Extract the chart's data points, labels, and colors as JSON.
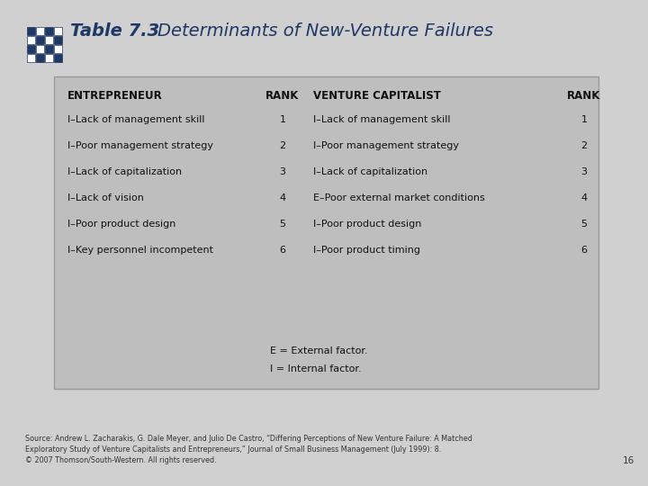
{
  "title_prefix": "Table 7.3",
  "title_suffix": "Determinants of New-Venture Failures",
  "title_color": "#1F3864",
  "bg_color": "#D0D0D0",
  "table_bg": "#BEBEBE",
  "table_border_color": "#999999",
  "header_col1": "ENTREPRENEUR",
  "header_col2": "RANK",
  "header_col3": "VENTURE CAPITALIST",
  "header_col4": "RANK",
  "rows": [
    [
      "I–Lack of management skill",
      "1",
      "I–Lack of management skill",
      "1"
    ],
    [
      "I–Poor management strategy",
      "2",
      "I–Poor management strategy",
      "2"
    ],
    [
      "I–Lack of capitalization",
      "3",
      "I–Lack of capitalization",
      "3"
    ],
    [
      "I–Lack of vision",
      "4",
      "E–Poor external market conditions",
      "4"
    ],
    [
      "I–Poor product design",
      "5",
      "I–Poor product design",
      "5"
    ],
    [
      "I–Key personnel incompetent",
      "6",
      "I–Poor product timing",
      "6"
    ]
  ],
  "footer1": "E = External factor.",
  "footer2": "I = Internal factor.",
  "source_line1": "Source: Andrew L. Zacharakis, G. Dale Meyer, and Julio De Castro, “Differing Perceptions of New Venture Failure: A Matched",
  "source_line2": "Exploratory Study of Venture Capitalists and Entrepreneurs,” Journal of Small Business Management (July 1999): 8.",
  "source_line3": "© 2007 Thomson/South-Western. All rights reserved.",
  "page_num": "16",
  "icon_color": "#1F3864"
}
